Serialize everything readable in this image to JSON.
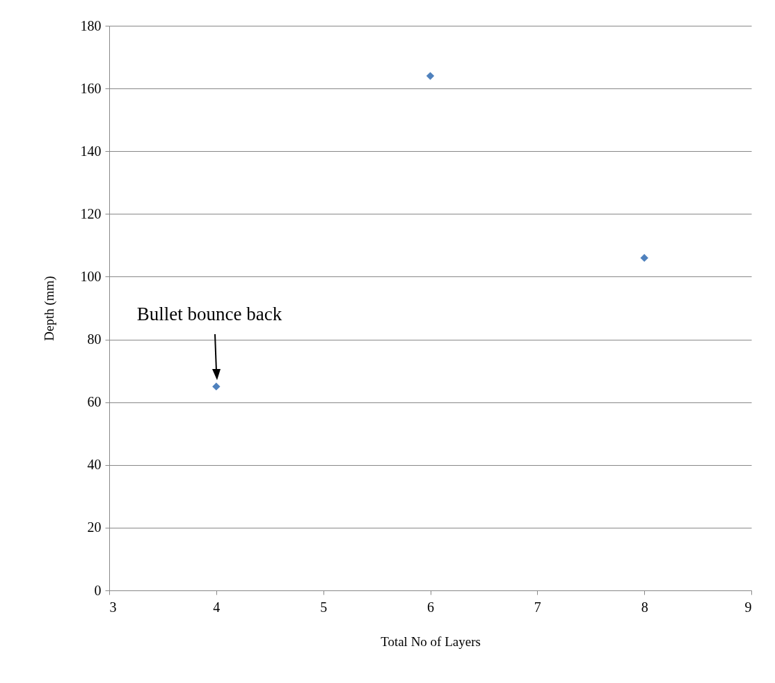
{
  "chart_data": {
    "type": "scatter",
    "xlabel": "Total No of Layers",
    "ylabel": "Depth (mm)",
    "x": [
      4,
      6,
      8
    ],
    "values": [
      65,
      164,
      106
    ],
    "color": "#4f81bd",
    "marker": "diamond",
    "xlim": [
      3,
      9
    ],
    "xticks": [
      3,
      4,
      5,
      6,
      7,
      8,
      9
    ],
    "ylim": [
      0,
      180
    ],
    "yticks": [
      0,
      20,
      40,
      60,
      80,
      100,
      120,
      140,
      160,
      180
    ],
    "grid": "y",
    "annotations": [
      "Bullet bounce back"
    ]
  }
}
